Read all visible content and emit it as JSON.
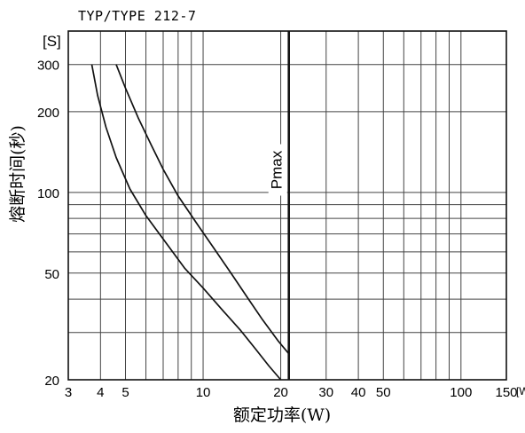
{
  "chart_data": {
    "type": "line",
    "title": "TYP/TYPE 212-7",
    "xlabel": "额定功率(W)",
    "ylabel": "熔断时间(秒)",
    "x_unit": "[W]",
    "y_unit": "[S]",
    "x_scale": "log",
    "y_scale": "log",
    "xlim": [
      3,
      150
    ],
    "ylim": [
      20,
      400
    ],
    "grid": true,
    "x_ticks": [
      {
        "value": 3,
        "label": "3"
      },
      {
        "value": 4,
        "label": "4"
      },
      {
        "value": 5,
        "label": "5"
      },
      {
        "value": 10,
        "label": "10"
      },
      {
        "value": 20,
        "label": "20"
      },
      {
        "value": 30,
        "label": "30"
      },
      {
        "value": 40,
        "label": "40"
      },
      {
        "value": 50,
        "label": "50"
      },
      {
        "value": 100,
        "label": "100"
      },
      {
        "value": 150,
        "label": "150"
      }
    ],
    "y_ticks": [
      {
        "value": 20,
        "label": "20"
      },
      {
        "value": 50,
        "label": "50"
      },
      {
        "value": 100,
        "label": "100"
      },
      {
        "value": 200,
        "label": "200"
      },
      {
        "value": 300,
        "label": "300"
      }
    ],
    "x_grid": [
      3,
      4,
      5,
      6,
      7,
      8,
      9,
      10,
      20,
      30,
      40,
      50,
      60,
      70,
      80,
      90,
      100,
      150
    ],
    "y_grid": [
      20,
      30,
      40,
      50,
      60,
      70,
      80,
      90,
      100,
      200,
      300,
      400
    ],
    "series": [
      {
        "values": [
          [
            3.7,
            300
          ],
          [
            3.9,
            230
          ],
          [
            4.2,
            175
          ],
          [
            4.6,
            135
          ],
          [
            5.2,
            103
          ],
          [
            6,
            82
          ],
          [
            7,
            67
          ],
          [
            8.5,
            52
          ],
          [
            10,
            44
          ],
          [
            12,
            36
          ],
          [
            14,
            30.5
          ],
          [
            16,
            26
          ],
          [
            18,
            22.5
          ],
          [
            20,
            20
          ]
        ]
      },
      {
        "values": [
          [
            4.6,
            300
          ],
          [
            5,
            245
          ],
          [
            5.6,
            190
          ],
          [
            6.3,
            150
          ],
          [
            7,
            122
          ],
          [
            8,
            97
          ],
          [
            9.5,
            76
          ],
          [
            11,
            62
          ],
          [
            13,
            49
          ],
          [
            15,
            40
          ],
          [
            17,
            33.5
          ],
          [
            19.5,
            28
          ],
          [
            21.5,
            25
          ]
        ]
      }
    ],
    "annotations": [
      {
        "text": "Pmax",
        "x": 21.5,
        "type": "vline"
      }
    ]
  },
  "colors": {
    "line": "#111111",
    "grid": "#444444",
    "background": "#ffffff"
  }
}
